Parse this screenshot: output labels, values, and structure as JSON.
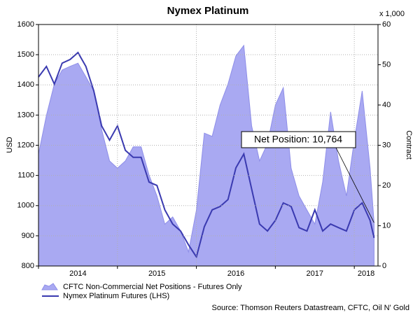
{
  "chart_data": {
    "type": "line",
    "title": "Nymex Platinum",
    "y_label": "USD",
    "y2_label": "Contract",
    "y2_unit": "x 1,000",
    "source": "Source: Thomson Reuters Datastream, CFTC, Oil N' Gold",
    "annotation": "Net Position: 10,764",
    "x": [
      2014.0,
      2014.1,
      2014.2,
      2014.3,
      2014.4,
      2014.5,
      2014.6,
      2014.7,
      2014.8,
      2014.9,
      2015.0,
      2015.1,
      2015.2,
      2015.3,
      2015.4,
      2015.5,
      2015.6,
      2015.7,
      2015.8,
      2015.9,
      2016.0,
      2016.1,
      2016.2,
      2016.3,
      2016.4,
      2016.5,
      2016.6,
      2016.7,
      2016.8,
      2016.9,
      2017.0,
      2017.1,
      2017.2,
      2017.3,
      2017.4,
      2017.5,
      2017.6,
      2017.7,
      2017.8,
      2017.9,
      2018.0,
      2018.1,
      2018.2,
      2018.25
    ],
    "xlim": [
      2014.0,
      2018.3
    ],
    "xticks": [
      2014,
      2015,
      2016,
      2017,
      2018
    ],
    "ylim": [
      800,
      1600
    ],
    "yticks": [
      800,
      900,
      1000,
      1100,
      1200,
      1300,
      1400,
      1500,
      1600
    ],
    "y2lim": [
      0,
      60
    ],
    "y2ticks": [
      0,
      10,
      20,
      30,
      40,
      50,
      60
    ],
    "grid": true,
    "series": [
      {
        "name": "CFTC Non-Commercial Net Positions - Futures Only",
        "type": "area",
        "axis": "y2",
        "color": "#a9a9f2",
        "values": [
          27.8,
          37.4,
          45.2,
          48.7,
          49.6,
          50.4,
          47.0,
          43.5,
          33.9,
          26.1,
          24.3,
          26.1,
          29.6,
          29.6,
          22.6,
          17.4,
          10.4,
          12.2,
          8.7,
          3.5,
          13.9,
          33.0,
          32.2,
          40.0,
          45.2,
          52.2,
          54.8,
          34.8,
          26.1,
          30.4,
          40.0,
          44.3,
          24.3,
          17.4,
          13.9,
          10.4,
          20.9,
          38.3,
          26.1,
          17.4,
          31.3,
          43.5,
          24.3,
          10.764
        ]
      },
      {
        "name": "Nymex Platinum Futures (LHS)",
        "type": "line",
        "axis": "y",
        "color": "#3a3ab0",
        "values": [
          1426,
          1461,
          1403,
          1472,
          1484,
          1507,
          1461,
          1380,
          1264,
          1217,
          1264,
          1183,
          1160,
          1160,
          1078,
          1067,
          986,
          939,
          916,
          870,
          830,
          930,
          986,
          997,
          1020,
          1125,
          1171,
          1055,
          939,
          916,
          951,
          1009,
          997,
          927,
          916,
          986,
          916,
          939,
          927,
          916,
          986,
          1009,
          951,
          893
        ]
      }
    ]
  }
}
